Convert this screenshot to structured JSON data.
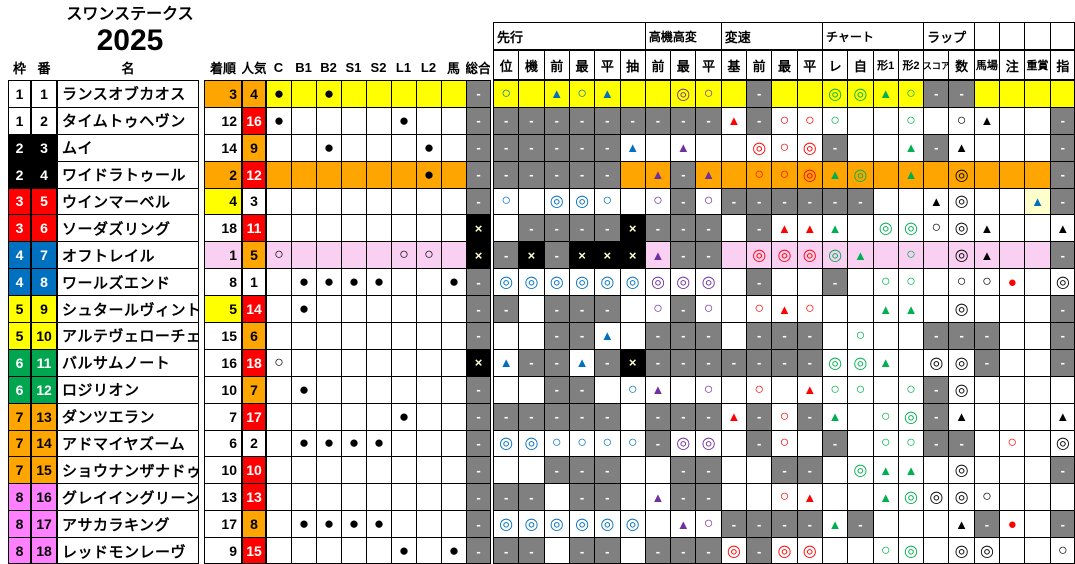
{
  "title": {
    "race": "スワンステークス",
    "year": "2025"
  },
  "colors": {
    "yellow": "#FFFF00",
    "orange": "#FFA500",
    "red": "#FF0000",
    "gray": "#808080",
    "black": "#000000",
    "cream": "#FFFFCC",
    "pink_row": "#F9CFF2",
    "frame_blue": "#0070C0",
    "frame_green": "#00A550",
    "frame_pink": "#FF80FF",
    "mark_blue": "#0070C0",
    "mark_purple": "#7030A0",
    "mark_green": "#00B050",
    "mark_red": "#FF0000"
  },
  "left_headers": {
    "waku": "枠",
    "num": "番",
    "name": "名",
    "finish": "着順",
    "pop": "人気"
  },
  "mark_headers": [
    "C",
    "B1",
    "B2",
    "S1",
    "S2",
    "L1",
    "L2",
    "馬"
  ],
  "total_header": "総合",
  "right_header_groups": [
    {
      "label": "先行",
      "cols": [
        "位",
        "機",
        "前",
        "最",
        "平",
        "抽"
      ]
    },
    {
      "label": "高機高変",
      "cols": [
        "前",
        "最",
        "平"
      ]
    },
    {
      "label": "変速",
      "cols": [
        "基",
        "前",
        "最",
        "平"
      ]
    },
    {
      "label": "チャート",
      "cols": [
        "レ",
        "自",
        "形1",
        "形2"
      ]
    },
    {
      "label": "ラップ",
      "cols": [
        "スコア",
        "数"
      ]
    },
    {
      "label": "",
      "cols": [
        "馬場"
      ]
    },
    {
      "label": "",
      "cols": [
        "注"
      ]
    },
    {
      "label": "",
      "cols": [
        "重賞"
      ]
    },
    {
      "label": "",
      "cols": [
        "指"
      ]
    }
  ],
  "legend_symbols": {
    "dc": "◎",
    "c": "○",
    "t": "▲",
    "f": "●",
    "dash": "-",
    "x": "×"
  },
  "horses": [
    {
      "waku": "1",
      "num": "1",
      "frame": "white",
      "name": "ランスオブカオス",
      "finish": "3",
      "finish_bg": "orange",
      "pop": "4",
      "pop_bg": "orange",
      "row_bg": "yellow",
      "total": "-",
      "marks": [
        "f",
        "",
        "f",
        "",
        "",
        "",
        "",
        ""
      ],
      "right": [
        "c:blue",
        "",
        "t:blue",
        "c:blue",
        "t:blue",
        "",
        "",
        "dc:purple",
        "c:purple",
        "",
        "-",
        "",
        "",
        "dc:green",
        "dc:green",
        "t:green",
        "c:green",
        "-",
        "-",
        "",
        "",
        "",
        ""
      ]
    },
    {
      "waku": "1",
      "num": "2",
      "frame": "white",
      "name": "タイムトゥヘヴン",
      "finish": "12",
      "finish_bg": "",
      "pop": "16",
      "pop_bg": "red",
      "row_bg": "",
      "total": "-",
      "marks": [
        "f",
        "",
        "",
        "",
        "",
        "f",
        "",
        ""
      ],
      "right": [
        "-",
        "-",
        "-",
        "-",
        "-",
        "-",
        "-",
        "-",
        "-",
        "t:red",
        "-",
        "c:red",
        "c:red",
        "c:green",
        "",
        "",
        "c:green",
        "",
        "c:black",
        "t:black",
        "",
        "",
        "-"
      ]
    },
    {
      "waku": "2",
      "num": "3",
      "frame": "black",
      "name": "ムイ",
      "finish": "14",
      "finish_bg": "",
      "pop": "9",
      "pop_bg": "orange",
      "row_bg": "",
      "total": "-",
      "marks": [
        "",
        "",
        "f",
        "",
        "",
        "",
        "f",
        ""
      ],
      "right": [
        "-",
        "-",
        "-",
        "-",
        "-",
        "t:blue",
        "",
        "t:purple",
        "",
        "",
        "dc:red",
        "c:red",
        "dc:red",
        "-",
        "",
        "",
        "t:green",
        "-",
        "t:black",
        "",
        "",
        "",
        "-"
      ]
    },
    {
      "waku": "2",
      "num": "4",
      "frame": "black",
      "name": "ワイドラトゥール",
      "finish": "2",
      "finish_bg": "orange",
      "pop": "12",
      "pop_bg": "red",
      "row_bg": "orange",
      "total": "-",
      "marks": [
        "",
        "",
        "",
        "",
        "",
        "",
        "f",
        ""
      ],
      "right": [
        "-",
        "-",
        "-",
        "-",
        "-",
        "",
        "t:purple",
        "-",
        "t:purple",
        "",
        "c:red",
        "c:red",
        "dc:red",
        "t:green",
        "dc:green",
        "",
        "t:green",
        "",
        "dc:black",
        "",
        "",
        "",
        "-"
      ]
    },
    {
      "waku": "3",
      "num": "5",
      "frame": "red",
      "name": "ウインマーベル",
      "finish": "4",
      "finish_bg": "yellow",
      "pop": "3",
      "pop_bg": "",
      "row_bg": "",
      "total": "-",
      "marks": [
        "",
        "",
        "",
        "",
        "",
        "",
        "",
        ""
      ],
      "right": [
        "c:blue",
        "",
        "dc:blue",
        "dc:blue",
        "c:blue",
        "",
        "c:purple",
        "-",
        "c:purple",
        "-",
        "-",
        "-",
        "-",
        "-",
        "-",
        "",
        "",
        "t:black",
        "dc:black",
        "",
        "",
        "t:blue:cream",
        "-"
      ]
    },
    {
      "waku": "3",
      "num": "6",
      "frame": "red",
      "name": "ソーダズリング",
      "finish": "18",
      "finish_bg": "",
      "pop": "11",
      "pop_bg": "red",
      "row_bg": "",
      "total": "x",
      "marks": [
        "",
        "",
        "",
        "",
        "",
        "",
        "",
        ""
      ],
      "right": [
        "",
        "-",
        "-",
        "-",
        "-",
        "x",
        "-",
        "-",
        "-",
        "",
        "-",
        "t:red",
        "t:red",
        "t:green",
        "",
        "dc:green",
        "dc:green",
        "c:black",
        "dc:black",
        "t:black",
        "",
        "",
        "t:black"
      ]
    },
    {
      "waku": "4",
      "num": "7",
      "frame": "blue",
      "name": "オフトレイル",
      "finish": "1",
      "finish_bg": "pink",
      "pop": "5",
      "pop_bg": "orange",
      "row_bg": "pink",
      "total": "x",
      "marks": [
        "c",
        "",
        "",
        "",
        "",
        "c",
        "c",
        ""
      ],
      "right": [
        "-",
        "x",
        "-",
        "x",
        "x",
        "x",
        "t:purple",
        "-",
        "-",
        "",
        "dc:red",
        "dc:red",
        "dc:red",
        "dc:green",
        "t:green",
        "",
        "c:green",
        "",
        "dc:black",
        "t:black",
        "",
        "",
        "-"
      ]
    },
    {
      "waku": "4",
      "num": "8",
      "frame": "blue",
      "name": "ワールズエンド",
      "finish": "8",
      "finish_bg": "",
      "pop": "1",
      "pop_bg": "",
      "row_bg": "",
      "total": "-",
      "marks": [
        "",
        "f",
        "f",
        "f",
        "f",
        "",
        "",
        "f"
      ],
      "right": [
        "dc:blue",
        "dc:blue",
        "dc:blue",
        "dc:blue",
        "dc:blue",
        "dc:blue",
        "dc:purple",
        "dc:purple",
        "dc:purple",
        "",
        "-",
        "",
        "",
        "-",
        "",
        "c:green",
        "c:green",
        "",
        "c:black",
        "c:black",
        "f:red",
        "",
        "dc:black"
      ]
    },
    {
      "waku": "5",
      "num": "9",
      "frame": "yellow",
      "name": "シュタールヴィント",
      "finish": "5",
      "finish_bg": "yellow",
      "pop": "14",
      "pop_bg": "red",
      "row_bg": "",
      "total": "-",
      "marks": [
        "",
        "f",
        "",
        "",
        "",
        "",
        "",
        ""
      ],
      "right": [
        "-",
        "",
        "-",
        "-",
        "-",
        "",
        "c:purple",
        "-",
        "c:purple",
        "",
        "c:red",
        "t:red",
        "c:red",
        "",
        "",
        "t:green",
        "t:green",
        "",
        "dc:black",
        "",
        "",
        "",
        "-"
      ]
    },
    {
      "waku": "5",
      "num": "10",
      "frame": "yellow",
      "name": "アルテヴェローチェ",
      "finish": "15",
      "finish_bg": "",
      "pop": "6",
      "pop_bg": "orange",
      "row_bg": "",
      "total": "-",
      "marks": [
        "",
        "",
        "",
        "",
        "",
        "",
        "",
        ""
      ],
      "right": [
        "",
        "",
        "-",
        "-",
        "t:blue",
        "",
        "-",
        "-",
        "-",
        "",
        "-",
        "-",
        "-",
        "",
        "c:green",
        "",
        "",
        "-",
        "-",
        "-",
        "",
        "",
        "-"
      ]
    },
    {
      "waku": "6",
      "num": "11",
      "frame": "green",
      "name": "バルサムノート",
      "finish": "16",
      "finish_bg": "",
      "pop": "18",
      "pop_bg": "red",
      "row_bg": "",
      "total": "x",
      "marks": [
        "c",
        "",
        "",
        "",
        "",
        "",
        "",
        ""
      ],
      "right": [
        "t:blue",
        "-",
        "-",
        "t:blue",
        "-",
        "x",
        "-",
        "-",
        "-",
        "-",
        "-",
        "-",
        "-",
        "dc:green",
        "dc:green",
        "t:green",
        "",
        "dc:black",
        "dc:black",
        "-",
        "",
        "",
        "-"
      ]
    },
    {
      "waku": "6",
      "num": "12",
      "frame": "green",
      "name": "ロジリオン",
      "finish": "10",
      "finish_bg": "",
      "pop": "7",
      "pop_bg": "orange",
      "row_bg": "",
      "total": "-",
      "marks": [
        "",
        "f",
        "",
        "",
        "",
        "",
        "",
        ""
      ],
      "right": [
        "",
        "",
        "-",
        "-",
        "",
        "c:blue",
        "t:purple",
        "",
        "c:purple",
        "",
        "c:red",
        "",
        "t:red",
        "c:green",
        "c:green",
        "",
        "c:green",
        "-",
        "dc:black",
        "",
        "",
        "",
        ""
      ]
    },
    {
      "waku": "7",
      "num": "13",
      "frame": "orange",
      "name": "ダンツエラン",
      "finish": "7",
      "finish_bg": "",
      "pop": "17",
      "pop_bg": "red",
      "row_bg": "",
      "total": "-",
      "marks": [
        "",
        "",
        "",
        "",
        "",
        "f",
        "",
        ""
      ],
      "right": [
        "-",
        "-",
        "-",
        "-",
        "-",
        "",
        "-",
        "-",
        "-",
        "t:red",
        "-",
        "c:red",
        "-",
        "t:green",
        "",
        "c:green",
        "dc:green",
        "-",
        "t:black",
        "",
        "",
        "",
        "t:black"
      ]
    },
    {
      "waku": "7",
      "num": "14",
      "frame": "orange",
      "name": "アドマイヤズーム",
      "finish": "6",
      "finish_bg": "",
      "pop": "2",
      "pop_bg": "",
      "row_bg": "",
      "total": "-",
      "marks": [
        "",
        "f",
        "f",
        "f",
        "f",
        "",
        "",
        ""
      ],
      "right": [
        "dc:blue",
        "dc:blue",
        "c:blue",
        "c:blue",
        "c:blue",
        "c:blue",
        "-",
        "dc:purple",
        "dc:purple",
        "",
        "-",
        "c:red",
        "",
        "-",
        "",
        "c:green",
        "c:green",
        "-",
        "-",
        "",
        "c:red",
        "",
        "dc:black"
      ]
    },
    {
      "waku": "7",
      "num": "15",
      "frame": "orange",
      "name": "ショウナンザナドゥ",
      "finish": "10",
      "finish_bg": "",
      "pop": "10",
      "pop_bg": "red",
      "row_bg": "",
      "total": "-",
      "marks": [
        "",
        "",
        "",
        "",
        "",
        "",
        "",
        ""
      ],
      "right": [
        "",
        "",
        "-",
        "-",
        "-",
        "",
        "",
        "-",
        "-",
        "",
        "",
        "-",
        "-",
        "",
        "dc:green",
        "t:green",
        "t:green",
        "",
        "dc:black",
        "",
        "",
        "",
        "-"
      ]
    },
    {
      "waku": "8",
      "num": "16",
      "frame": "pink",
      "name": "グレイイングリーン",
      "finish": "13",
      "finish_bg": "",
      "pop": "13",
      "pop_bg": "red",
      "row_bg": "",
      "total": "-",
      "marks": [
        "",
        "",
        "",
        "",
        "",
        "",
        "",
        ""
      ],
      "right": [
        "-",
        "-",
        "",
        "-",
        "-",
        "",
        "t:purple",
        "-",
        "-",
        "",
        "",
        "c:red",
        "t:red",
        "",
        "",
        "t:green",
        "dc:green",
        "dc:black",
        "dc:black",
        "c:black",
        "",
        "",
        ""
      ]
    },
    {
      "waku": "8",
      "num": "17",
      "frame": "pink",
      "name": "アサカラキング",
      "finish": "17",
      "finish_bg": "",
      "pop": "8",
      "pop_bg": "orange",
      "row_bg": "",
      "total": "-",
      "marks": [
        "",
        "f",
        "f",
        "f",
        "f",
        "",
        "",
        ""
      ],
      "right": [
        "dc:blue",
        "dc:blue",
        "dc:blue",
        "dc:blue",
        "dc:blue",
        "dc:blue",
        "",
        "t:purple",
        "c:purple",
        "-",
        "-",
        "-",
        "-",
        "t:green",
        "-",
        "",
        "",
        "",
        "t:black",
        "-",
        "f:red",
        "",
        "-"
      ]
    },
    {
      "waku": "8",
      "num": "18",
      "frame": "pink",
      "name": "レッドモンレーヴ",
      "finish": "9",
      "finish_bg": "",
      "pop": "15",
      "pop_bg": "red",
      "row_bg": "",
      "total": "-",
      "marks": [
        "",
        "",
        "",
        "",
        "",
        "f",
        "",
        "f"
      ],
      "right": [
        "-",
        "-",
        "",
        "-",
        "-",
        "",
        "-",
        "-",
        "-",
        "dc:red",
        "-",
        "dc:red",
        "dc:red",
        "",
        "",
        "c:green",
        "dc:green",
        "",
        "dc:black",
        "dc:black",
        "",
        "",
        "c:black"
      ]
    }
  ]
}
